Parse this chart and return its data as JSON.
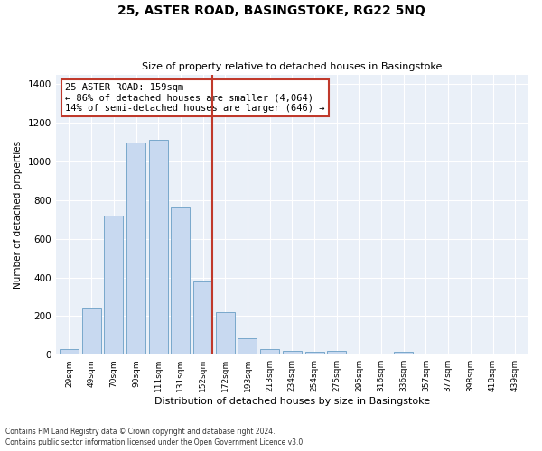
{
  "title": "25, ASTER ROAD, BASINGSTOKE, RG22 5NQ",
  "subtitle": "Size of property relative to detached houses in Basingstoke",
  "xlabel": "Distribution of detached houses by size in Basingstoke",
  "ylabel": "Number of detached properties",
  "categories": [
    "29sqm",
    "49sqm",
    "70sqm",
    "90sqm",
    "111sqm",
    "131sqm",
    "152sqm",
    "172sqm",
    "193sqm",
    "213sqm",
    "234sqm",
    "254sqm",
    "275sqm",
    "295sqm",
    "316sqm",
    "336sqm",
    "357sqm",
    "377sqm",
    "398sqm",
    "418sqm",
    "439sqm"
  ],
  "values": [
    30,
    240,
    720,
    1100,
    1110,
    760,
    380,
    220,
    85,
    30,
    20,
    15,
    20,
    0,
    0,
    15,
    0,
    0,
    0,
    0,
    0
  ],
  "bar_color": "#c8d9f0",
  "bar_edge_color": "#6a9ec5",
  "vline_x_index": 6,
  "vline_color": "#c0392b",
  "annotation_box_text": "25 ASTER ROAD: 159sqm\n← 86% of detached houses are smaller (4,064)\n14% of semi-detached houses are larger (646) →",
  "annotation_box_color": "#c0392b",
  "ylim": [
    0,
    1450
  ],
  "yticks": [
    0,
    200,
    400,
    600,
    800,
    1000,
    1200,
    1400
  ],
  "bg_color": "#eaf0f8",
  "footnote1": "Contains HM Land Registry data © Crown copyright and database right 2024.",
  "footnote2": "Contains public sector information licensed under the Open Government Licence v3.0."
}
